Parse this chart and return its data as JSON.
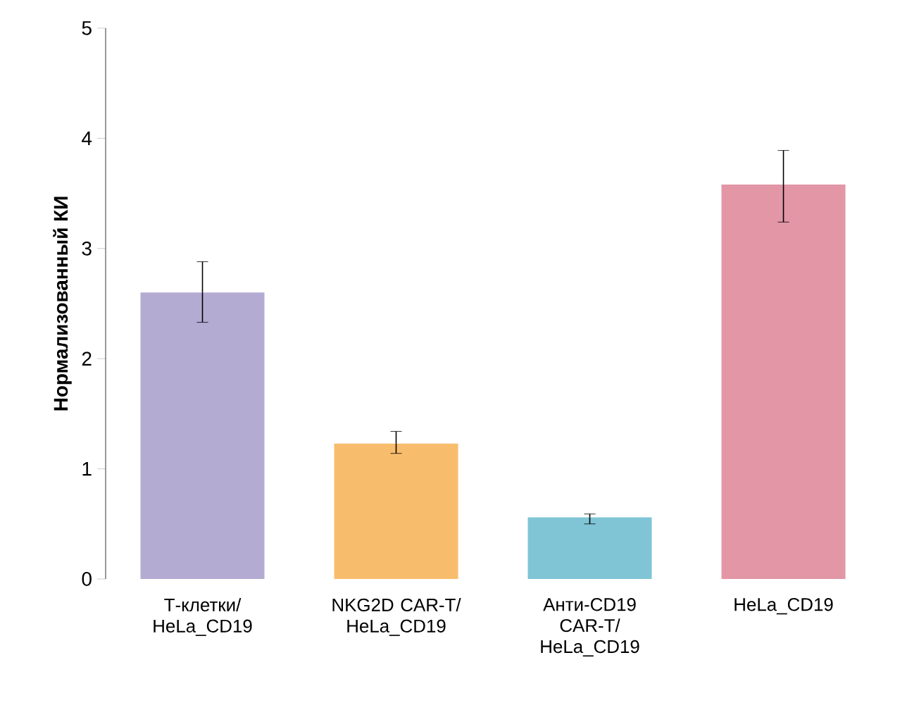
{
  "chart_data": {
    "type": "bar",
    "ylabel": "Нормализованный КИ",
    "categories": [
      "Т-клетки/ HeLa_CD19",
      "NKG2D CAR-T/ HeLa_CD19",
      "Анти-CD19 CAR-T/ HeLa_CD19",
      "HeLa_CD19"
    ],
    "values": [
      2.6,
      1.23,
      0.56,
      3.58
    ],
    "errors": [
      [
        2.33,
        2.88
      ],
      [
        1.14,
        1.34
      ],
      [
        0.5,
        0.59
      ],
      [
        3.24,
        3.89
      ]
    ],
    "colors": [
      "#b3abd2",
      "#f8bd6c",
      "#7fc5d6",
      "#e296a6"
    ],
    "ylim": [
      0,
      5
    ],
    "yticks": [
      0,
      1,
      2,
      3,
      4,
      5
    ],
    "grid": false
  }
}
